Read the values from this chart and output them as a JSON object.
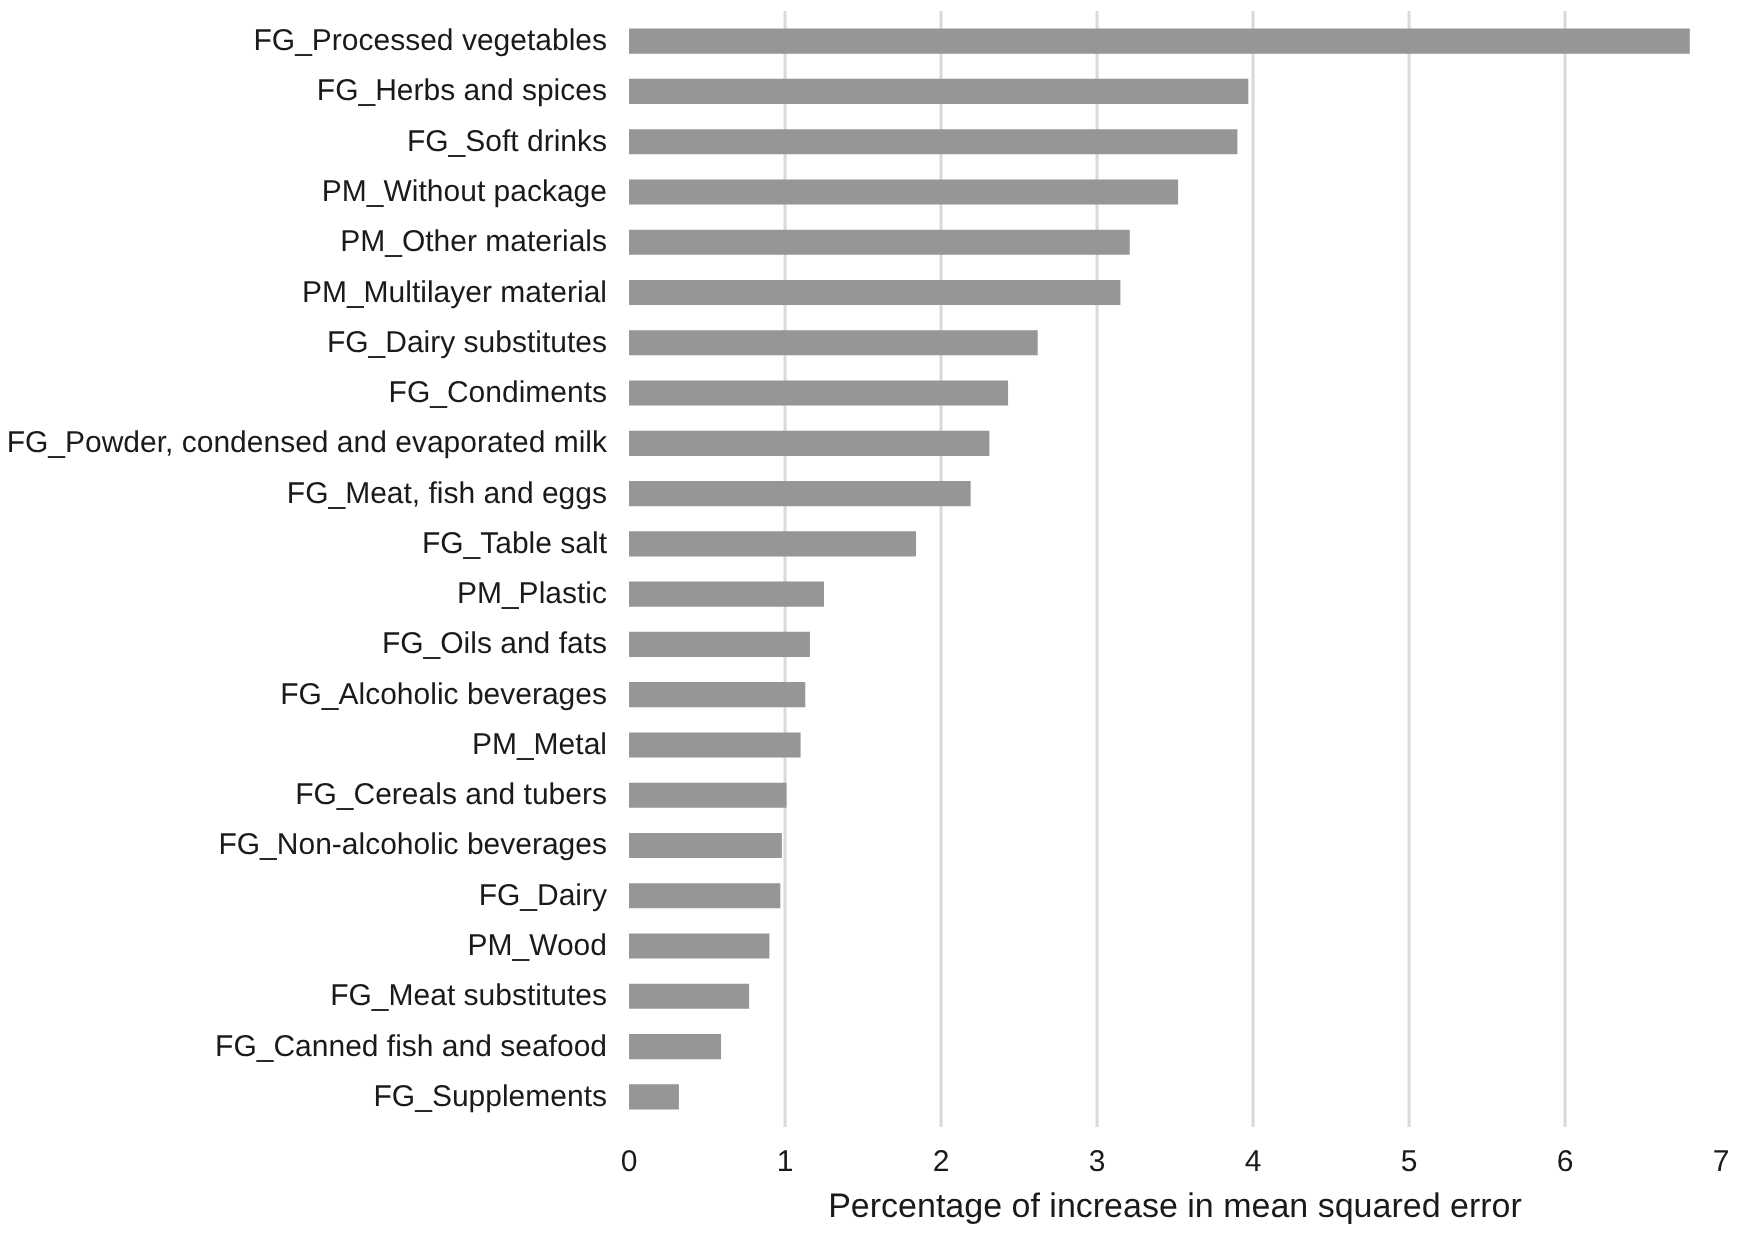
{
  "chart_data": {
    "type": "bar",
    "orientation": "horizontal",
    "xlabel": "Percentage of increase in mean squared error",
    "categories": [
      "FG_Processed vegetables",
      "FG_Herbs and spices",
      "FG_Soft drinks",
      "PM_Without package",
      "PM_Other materials",
      "PM_Multilayer material",
      "FG_Dairy substitutes",
      "FG_Condiments",
      "FG_Powder, condensed and evaporated milk",
      "FG_Meat, fish and eggs",
      "FG_Table salt",
      "PM_Plastic",
      "FG_Oils and fats",
      "FG_Alcoholic beverages",
      "PM_Metal",
      "FG_Cereals and tubers",
      "FG_Non-alcoholic beverages",
      "FG_Dairy",
      "PM_Wood",
      "FG_Meat substitutes",
      "FG_Canned fish and seafood",
      "FG_Supplements"
    ],
    "values": [
      6.8,
      3.97,
      3.9,
      3.52,
      3.21,
      3.15,
      2.62,
      2.43,
      2.31,
      2.19,
      1.84,
      1.25,
      1.16,
      1.13,
      1.1,
      1.01,
      0.98,
      0.97,
      0.9,
      0.77,
      0.59,
      0.32
    ],
    "color": "#969696",
    "xlim": [
      0,
      7
    ],
    "xticks": [
      0,
      1,
      2,
      3,
      4,
      5,
      6,
      7
    ],
    "grid": "x"
  }
}
